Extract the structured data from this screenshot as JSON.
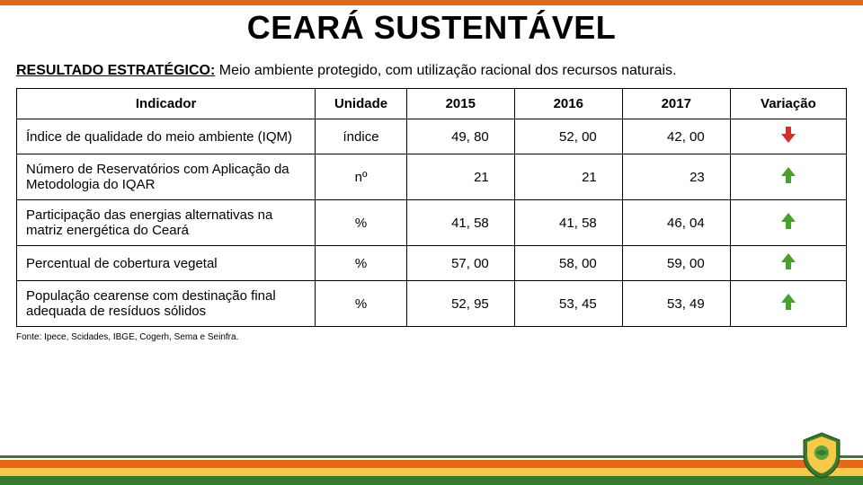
{
  "colors": {
    "orange": "#e06a1a",
    "green_dark": "#3a7a2e",
    "green_mid": "#6aa844",
    "yellow": "#f7c948",
    "arrow_up": "#4aa02c",
    "arrow_down": "#d22e2e",
    "black": "#000000"
  },
  "title": "CEARÁ SUSTENTÁVEL",
  "subtitle_lead": "RESULTADO ESTRATÉGICO:",
  "subtitle_rest": " Meio ambiente protegido, com utilização racional dos recursos naturais.",
  "table": {
    "headers": {
      "indicador": "Indicador",
      "unidade": "Unidade",
      "y2015": "2015",
      "y2016": "2016",
      "y2017": "2017",
      "variacao": "Variação"
    },
    "rows": [
      {
        "indicador": "Índice de qualidade do meio ambiente (IQM)",
        "unidade": "índice",
        "v2015": "49, 80",
        "v2016": "52, 00",
        "v2017": "42, 00",
        "dir": "down"
      },
      {
        "indicador": "Número de Reservatórios com Aplicação da Metodologia do IQAR",
        "unidade": "nº",
        "v2015": "21",
        "v2016": "21",
        "v2017": "23",
        "dir": "up"
      },
      {
        "indicador": "Participação das energias alternativas na matriz energética do Ceará",
        "unidade": "%",
        "v2015": "41, 58",
        "v2016": "41, 58",
        "v2017": "46, 04",
        "dir": "up"
      },
      {
        "indicador": "Percentual de cobertura vegetal",
        "unidade": "%",
        "v2015": "57, 00",
        "v2016": "58, 00",
        "v2017": "59, 00",
        "dir": "up"
      },
      {
        "indicador": "População cearense com destinação final adequada de resíduos sólidos",
        "unidade": "%",
        "v2015": "52, 95",
        "v2016": "53, 45",
        "v2017": "53, 49",
        "dir": "up"
      }
    ]
  },
  "source": "Fonte: Ipece, Scidades, IBGE, Cogerh, Sema e Seinfra."
}
